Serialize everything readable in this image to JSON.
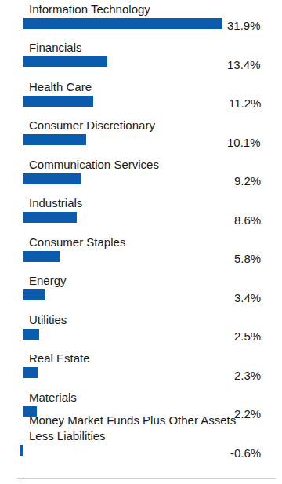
{
  "chart_data": {
    "type": "bar",
    "orientation": "horizontal",
    "categories": [
      "Information Technology",
      "Financials",
      "Health Care",
      "Consumer Discretionary",
      "Communication Services",
      "Industrials",
      "Consumer Staples",
      "Energy",
      "Utilities",
      "Real Estate",
      "Materials",
      "Money Market Funds Plus Other Assets Less Liabilities"
    ],
    "values": [
      31.9,
      13.4,
      11.2,
      10.1,
      9.2,
      8.6,
      5.8,
      3.4,
      2.5,
      2.3,
      2.2,
      -0.6
    ],
    "value_labels": [
      "31.9%",
      "13.4%",
      "11.2%",
      "10.1%",
      "9.2%",
      "8.6%",
      "5.8%",
      "3.4%",
      "2.5%",
      "2.3%",
      "2.2%",
      "-0.6%"
    ],
    "color": "#0b5cad",
    "xlim": [
      -1,
      40.5
    ],
    "xticks": [
      0
    ],
    "grid": false,
    "data_labels": true,
    "tick_labels": false
  }
}
